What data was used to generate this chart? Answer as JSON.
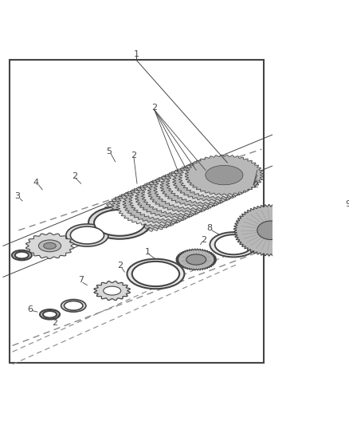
{
  "bg_color": "#ffffff",
  "border_color": "#444444",
  "line_color": "#444444",
  "dark_color": "#222222",
  "gray1": "#d8d8d8",
  "gray2": "#b8b8b8",
  "gray3": "#989898",
  "gray4": "#e8e8e8",
  "dashed_color": "#888888",
  "figure_width": 4.38,
  "figure_height": 5.33,
  "dpi": 100
}
